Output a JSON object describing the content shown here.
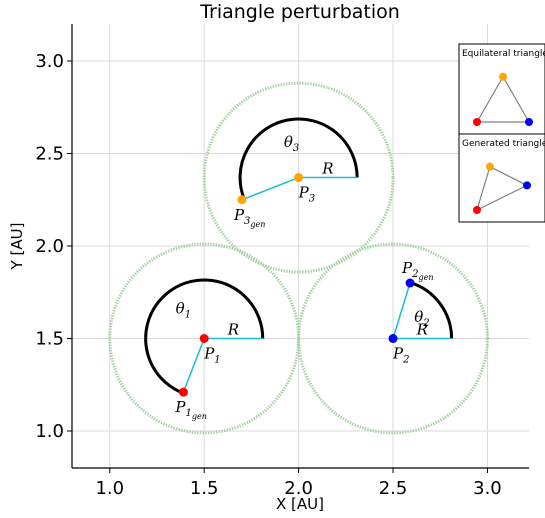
{
  "chart_data": {
    "type": "scatter",
    "title": "Triangle perturbation",
    "xlabel": "X [AU]",
    "ylabel": "Y [AU]",
    "xlim": [
      0.8,
      3.22
    ],
    "ylim": [
      0.8,
      3.2
    ],
    "xticks": [
      "1.0",
      "1.5",
      "2.0",
      "2.5",
      "3.0"
    ],
    "xtick_values": [
      1.0,
      1.5,
      2.0,
      2.5,
      3.0
    ],
    "yticks": [
      "1.0",
      "1.5",
      "2.0",
      "2.5",
      "3.0"
    ],
    "ytick_values": [
      1.0,
      1.5,
      2.0,
      2.5,
      3.0
    ],
    "grid": true,
    "perturbation_radius": 0.5,
    "arc_radius": 0.31,
    "circle_color": "#9ccc9c",
    "arc_color": "#000000",
    "segment_color": "#17becf",
    "radius_label": "R",
    "points": [
      {
        "name": "P1",
        "x": 1.5,
        "y": 1.5,
        "color": "#ff0000",
        "label": {
          "base": "P",
          "sub": "1"
        },
        "theta": {
          "base": "θ",
          "sub": "1"
        },
        "gen": {
          "x": 1.39,
          "y": 1.21,
          "color": "#ff0000",
          "label": {
            "base": "P",
            "sub": "1",
            "subsub": "gen"
          }
        }
      },
      {
        "name": "P2",
        "x": 2.5,
        "y": 1.5,
        "color": "#0000ff",
        "label": {
          "base": "P",
          "sub": "2"
        },
        "theta": {
          "base": "θ",
          "sub": "2"
        },
        "gen": {
          "x": 2.59,
          "y": 1.8,
          "color": "#0000ff",
          "label": {
            "base": "P",
            "sub": "2",
            "subsub": "gen"
          }
        }
      },
      {
        "name": "P3",
        "x": 2.0,
        "y": 2.37,
        "color": "#ffa500",
        "label": {
          "base": "P",
          "sub": "3"
        },
        "theta": {
          "base": "θ",
          "sub": "3"
        },
        "gen": {
          "x": 1.7,
          "y": 2.25,
          "color": "#ffa500",
          "label": {
            "base": "P",
            "sub": "3",
            "subsub": "gen"
          }
        }
      }
    ],
    "insets": [
      {
        "title": "Equilateral triangle",
        "vertices": [
          {
            "x": 2.0,
            "y": 2.37,
            "color": "#ffa500"
          },
          {
            "x": 1.5,
            "y": 1.5,
            "color": "#ff0000"
          },
          {
            "x": 2.5,
            "y": 1.5,
            "color": "#0000ff"
          }
        ]
      },
      {
        "title": "Generated triangle",
        "vertices": [
          {
            "x": 1.7,
            "y": 2.25,
            "color": "#ffa500"
          },
          {
            "x": 1.39,
            "y": 1.21,
            "color": "#ff0000"
          },
          {
            "x": 2.59,
            "y": 1.8,
            "color": "#0000ff"
          }
        ]
      }
    ]
  }
}
